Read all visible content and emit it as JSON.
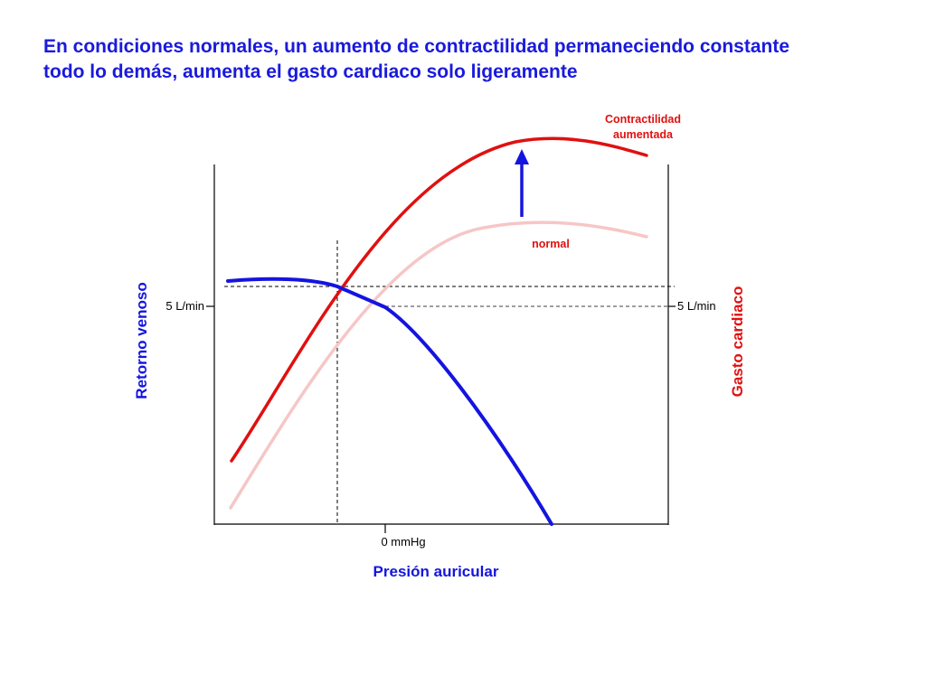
{
  "title": {
    "line1": "En condiciones normales, un aumento de contractilidad permaneciendo constante",
    "line2": "todo lo demás, aumenta el gasto cardiaco solo ligeramente"
  },
  "labels": {
    "contractility_line1": "Contractilidad",
    "contractility_line2": "aumentada",
    "normal": "normal",
    "left_tick": "5 L/min",
    "right_tick": "5 L/min",
    "x_tick": "0 mmHg",
    "left_axis": "Retorno venoso",
    "right_axis": "Gasto cardiaco",
    "x_axis": "Presión auricular"
  },
  "colors": {
    "title": "#1a1adc",
    "cardiac_output": "#e01010",
    "cardiac_output_normal": "#f6c6c6",
    "venous_return": "#1414e0",
    "arrow": "#1414e0",
    "axes": "#000000"
  },
  "curves": {
    "venous_return": "blue descending curve: flat plateau, then falls steeply to zero",
    "cardiac_output_increased": "bright red curve, higher plateau",
    "cardiac_output_normal": "light pink curve, lower plateau",
    "equilibrium": "dashed lines mark intersections of venous return with each cardiac output curve"
  },
  "icons": {
    "increase_arrow": "arrow-up-icon"
  }
}
